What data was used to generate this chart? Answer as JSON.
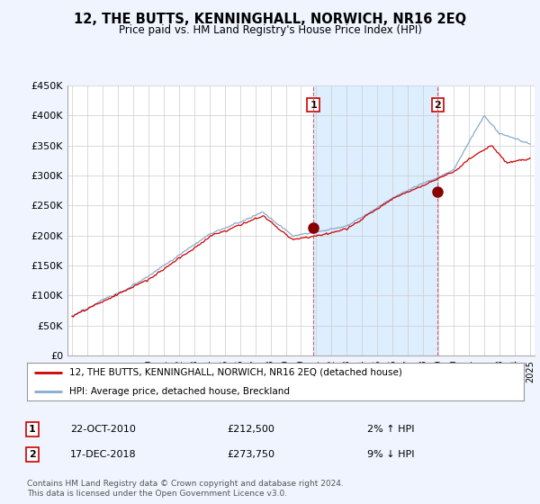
{
  "title": "12, THE BUTTS, KENNINGHALL, NORWICH, NR16 2EQ",
  "subtitle": "Price paid vs. HM Land Registry's House Price Index (HPI)",
  "legend_line1": "12, THE BUTTS, KENNINGHALL, NORWICH, NR16 2EQ (detached house)",
  "legend_line2": "HPI: Average price, detached house, Breckland",
  "annotation1_num": "1",
  "annotation1_date": "22-OCT-2010",
  "annotation1_price": "£212,500",
  "annotation1_hpi": "2% ↑ HPI",
  "annotation2_num": "2",
  "annotation2_date": "17-DEC-2018",
  "annotation2_price": "£273,750",
  "annotation2_hpi": "9% ↓ HPI",
  "footer": "Contains HM Land Registry data © Crown copyright and database right 2024.\nThis data is licensed under the Open Government Licence v3.0.",
  "red_color": "#cc0000",
  "blue_color": "#88aacc",
  "shade_color": "#ddeeff",
  "background_color": "#f0f4ff",
  "plot_bg_color": "#ffffff",
  "ylim": [
    0,
    450000
  ],
  "yticks": [
    0,
    50000,
    100000,
    150000,
    200000,
    250000,
    300000,
    350000,
    400000,
    450000
  ],
  "ytick_labels": [
    "£0",
    "£50K",
    "£100K",
    "£150K",
    "£200K",
    "£250K",
    "£300K",
    "£350K",
    "£400K",
    "£450K"
  ],
  "sale1_x": 2010.8,
  "sale1_y": 212500,
  "sale2_x": 2018.96,
  "sale2_y": 273750,
  "xmin": 1995,
  "xmax": 2025
}
